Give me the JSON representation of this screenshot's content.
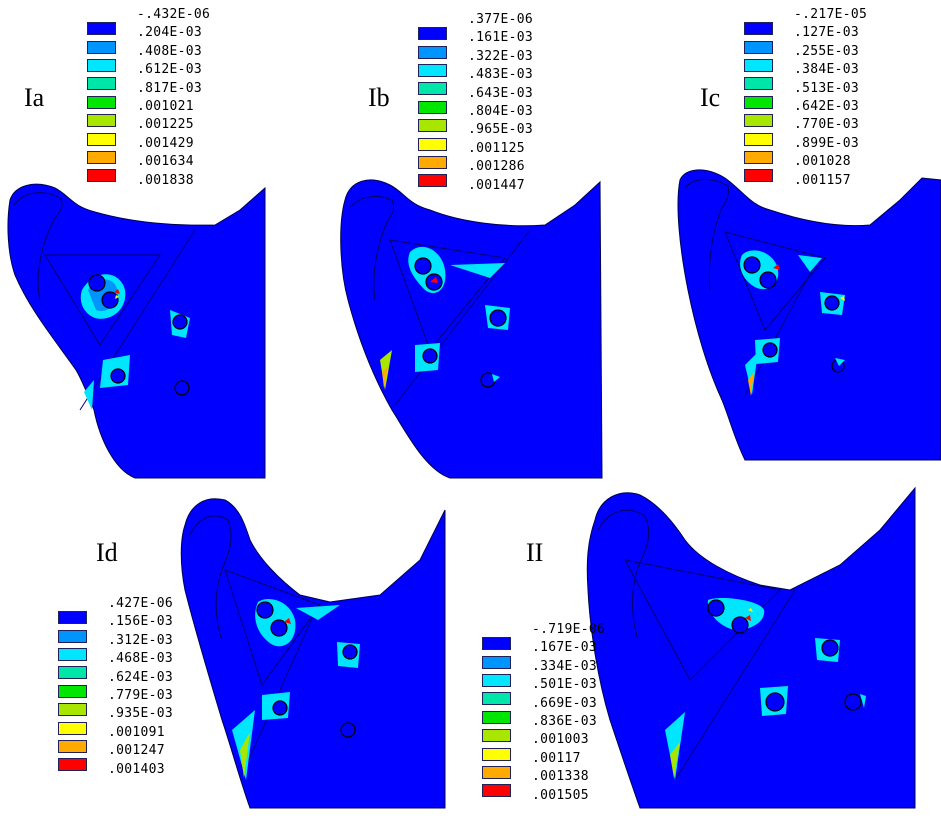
{
  "panels": [
    {
      "id": "Ia",
      "label": "Ia",
      "legend": [
        "-.432E-06",
        ".204E-03",
        ".408E-03",
        ".612E-03",
        ".817E-03",
        ".001021",
        ".001225",
        ".001429",
        ".001634",
        ".001838"
      ]
    },
    {
      "id": "Ib",
      "label": "Ib",
      "legend": [
        ".377E-06",
        ".161E-03",
        ".322E-03",
        ".483E-03",
        ".643E-03",
        ".804E-03",
        ".965E-03",
        ".001125",
        ".001286",
        ".001447"
      ]
    },
    {
      "id": "Ic",
      "label": "Ic",
      "legend": [
        "-.217E-05",
        ".127E-03",
        ".255E-03",
        ".384E-03",
        ".513E-03",
        ".642E-03",
        ".770E-03",
        ".899E-03",
        ".001028",
        ".001157"
      ]
    },
    {
      "id": "Id",
      "label": "Id",
      "legend": [
        ".427E-06",
        ".156E-03",
        ".312E-03",
        ".468E-03",
        ".624E-03",
        ".779E-03",
        ".935E-03",
        ".001091",
        ".001247",
        ".001403"
      ]
    },
    {
      "id": "II",
      "label": "II",
      "legend": [
        "-.719E-06",
        ".167E-03",
        ".334E-03",
        ".501E-03",
        ".669E-03",
        ".836E-03",
        ".001003",
        ".00117",
        ".001338",
        ".001505"
      ]
    }
  ],
  "legend_colors": [
    "#0000ff",
    "#0094ff",
    "#00e6ff",
    "#00e6a8",
    "#00e600",
    "#a8e600",
    "#ffff00",
    "#ffaa00",
    "#ff0000"
  ]
}
